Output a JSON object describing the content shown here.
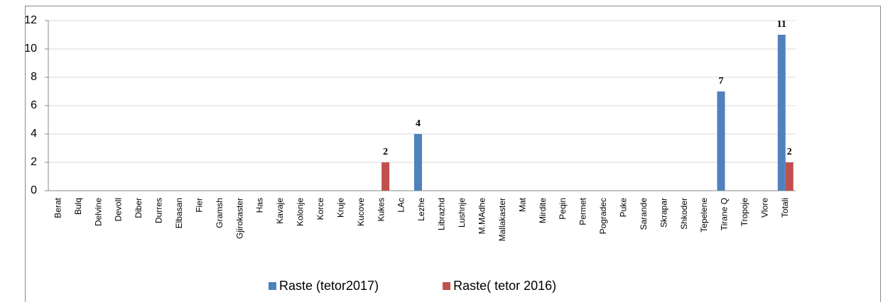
{
  "chart_data": {
    "type": "bar",
    "categories": [
      "Berat",
      "Bulq",
      "Delvine",
      "Devoll",
      "Diber",
      "Durres",
      "Elbasan",
      "Fier",
      "Gramsh",
      "Gjirokaster",
      "Has",
      "Kavaje",
      "Kolonje",
      "Korce",
      "Kruje",
      "Kucove",
      "Kukes",
      "LAc",
      "Lezhe",
      "Librazhd",
      "Lushnje",
      "M.MAdhe",
      "Mallakaster",
      "Mat",
      "Mirdite",
      "Peqin",
      "Permet",
      "Pogradec",
      "Puke",
      "Sarande",
      "Skrapar",
      "Shkoder",
      "Tepelene",
      "Tirane Q",
      "Tropoje",
      "Vlore",
      "Totali"
    ],
    "series": [
      {
        "name": "Raste (tetor2017)",
        "color": "#4f81bd",
        "values": [
          0,
          0,
          0,
          0,
          0,
          0,
          0,
          0,
          0,
          0,
          0,
          0,
          0,
          0,
          0,
          0,
          0,
          0,
          4,
          0,
          0,
          0,
          0,
          0,
          0,
          0,
          0,
          0,
          0,
          0,
          0,
          0,
          0,
          7,
          0,
          0,
          11
        ]
      },
      {
        "name": "Raste( tetor 2016)",
        "color": "#c0504d",
        "values": [
          0,
          0,
          0,
          0,
          0,
          0,
          0,
          0,
          0,
          0,
          0,
          0,
          0,
          0,
          0,
          0,
          2,
          0,
          0,
          0,
          0,
          0,
          0,
          0,
          0,
          0,
          0,
          0,
          0,
          0,
          0,
          0,
          0,
          0,
          0,
          0,
          2
        ]
      }
    ],
    "ylim": [
      0,
      12
    ],
    "yticks": [
      0,
      2,
      4,
      6,
      8,
      10,
      12
    ],
    "grid": true,
    "legend": "bottom"
  }
}
